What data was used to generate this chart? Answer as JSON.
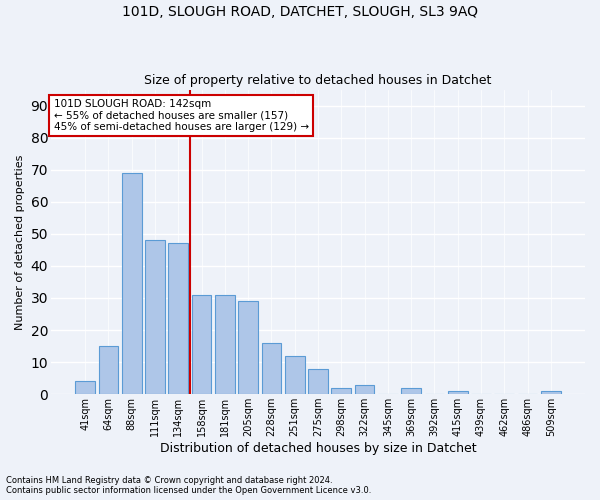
{
  "title1": "101D, SLOUGH ROAD, DATCHET, SLOUGH, SL3 9AQ",
  "title2": "Size of property relative to detached houses in Datchet",
  "xlabel": "Distribution of detached houses by size in Datchet",
  "ylabel": "Number of detached properties",
  "bar_labels": [
    "41sqm",
    "64sqm",
    "88sqm",
    "111sqm",
    "134sqm",
    "158sqm",
    "181sqm",
    "205sqm",
    "228sqm",
    "251sqm",
    "275sqm",
    "298sqm",
    "322sqm",
    "345sqm",
    "369sqm",
    "392sqm",
    "415sqm",
    "439sqm",
    "462sqm",
    "486sqm",
    "509sqm"
  ],
  "bar_values": [
    4,
    15,
    69,
    48,
    47,
    31,
    31,
    29,
    16,
    12,
    8,
    2,
    3,
    0,
    2,
    0,
    1,
    0,
    0,
    0,
    1
  ],
  "bar_color": "#aec6e8",
  "bar_edgecolor": "#5b9bd5",
  "ylim": [
    0,
    95
  ],
  "yticks": [
    0,
    10,
    20,
    30,
    40,
    50,
    60,
    70,
    80,
    90
  ],
  "vline_color": "#cc0000",
  "annotation_text": "101D SLOUGH ROAD: 142sqm\n← 55% of detached houses are smaller (157)\n45% of semi-detached houses are larger (129) →",
  "annotation_box_color": "white",
  "annotation_box_edgecolor": "#cc0000",
  "footnote1": "Contains HM Land Registry data © Crown copyright and database right 2024.",
  "footnote2": "Contains public sector information licensed under the Open Government Licence v3.0.",
  "bg_color": "#eef2f9",
  "grid_color": "white"
}
